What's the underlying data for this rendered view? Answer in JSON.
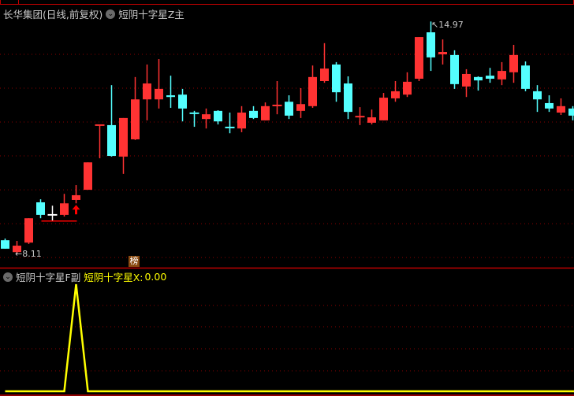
{
  "header": {
    "title": "长华集团(日线,前复权)",
    "indicator_icon": "chevron-down-icon",
    "indicator_main": "短阴十字星Z主"
  },
  "sub_header": {
    "indicator_icon": "chevron-down-icon",
    "indicator_sub": "短阴十字星F副",
    "series_label": "短阴十字星X:",
    "series_value": "0.00"
  },
  "annotations": {
    "high_label": "14.97",
    "low_label": "8.11",
    "badge": "榜"
  },
  "colors": {
    "up": "#ff3333",
    "down": "#54ffff",
    "flat": "#ffffff",
    "grid": "#8b0000",
    "divider": "#c00000",
    "indicator_line": "#ffff00",
    "signal": "#ff0000"
  },
  "chart_data": [
    {
      "type": "candlestick",
      "ylim": [
        7.7,
        15.0
      ],
      "gridlines": [
        8,
        9,
        10,
        11,
        12,
        13,
        14
      ],
      "grid": true,
      "candles": [
        [
          8.51,
          8.56,
          8.26,
          8.26
        ],
        [
          8.16,
          8.49,
          8.11,
          8.35
        ],
        [
          8.44,
          9.16,
          8.4,
          9.16
        ],
        [
          9.63,
          9.72,
          9.16,
          9.26
        ],
        [
          9.26,
          9.53,
          9.09,
          9.26
        ],
        [
          9.26,
          9.88,
          9.21,
          9.6
        ],
        [
          9.7,
          10.14,
          9.6,
          9.84
        ],
        [
          10.0,
          10.81,
          10.0,
          10.81
        ],
        [
          11.91,
          11.91,
          10.93,
          11.91
        ],
        [
          11.91,
          13.09,
          10.98,
          11.0
        ],
        [
          10.98,
          12.12,
          10.47,
          12.12
        ],
        [
          11.49,
          13.33,
          11.47,
          12.67
        ],
        [
          12.67,
          13.7,
          12.05,
          13.14
        ],
        [
          12.67,
          13.86,
          12.4,
          12.98
        ],
        [
          12.79,
          13.37,
          12.42,
          12.74
        ],
        [
          12.81,
          12.98,
          12.02,
          12.4
        ],
        [
          12.26,
          12.33,
          11.86,
          12.26
        ],
        [
          12.09,
          12.4,
          11.81,
          12.23
        ],
        [
          12.33,
          12.35,
          11.93,
          12.02
        ],
        [
          11.84,
          12.28,
          11.67,
          11.84
        ],
        [
          11.81,
          12.47,
          11.7,
          12.28
        ],
        [
          12.33,
          12.47,
          12.09,
          12.12
        ],
        [
          12.05,
          12.58,
          12.05,
          12.47
        ],
        [
          12.49,
          13.21,
          12.23,
          12.49
        ],
        [
          12.6,
          12.79,
          12.09,
          12.19
        ],
        [
          12.33,
          13.0,
          12.12,
          12.53
        ],
        [
          12.47,
          13.67,
          12.42,
          13.33
        ],
        [
          13.21,
          14.33,
          13.16,
          13.58
        ],
        [
          13.7,
          13.77,
          12.6,
          12.88
        ],
        [
          13.14,
          13.35,
          12.09,
          12.3
        ],
        [
          12.16,
          12.44,
          11.91,
          12.16
        ],
        [
          11.98,
          12.37,
          11.93,
          12.14
        ],
        [
          12.05,
          12.86,
          12.05,
          12.72
        ],
        [
          12.7,
          13.21,
          12.6,
          12.91
        ],
        [
          12.81,
          13.47,
          12.74,
          13.19
        ],
        [
          13.28,
          14.51,
          13.21,
          14.51
        ],
        [
          14.65,
          14.97,
          13.51,
          13.91
        ],
        [
          14.0,
          14.44,
          13.7,
          14.07
        ],
        [
          13.98,
          14.12,
          12.98,
          13.12
        ],
        [
          13.05,
          13.56,
          12.74,
          13.42
        ],
        [
          13.33,
          13.35,
          12.93,
          13.23
        ],
        [
          13.37,
          13.6,
          13.16,
          13.28
        ],
        [
          13.26,
          13.77,
          13.09,
          13.51
        ],
        [
          13.47,
          14.28,
          13.16,
          13.98
        ],
        [
          13.67,
          13.79,
          12.91,
          12.98
        ],
        [
          12.91,
          13.09,
          12.3,
          12.67
        ],
        [
          12.56,
          12.79,
          12.3,
          12.4
        ],
        [
          12.28,
          12.7,
          12.21,
          12.47
        ],
        [
          12.4,
          12.47,
          12.05,
          12.19
        ]
      ],
      "candle_colors": [
        "down",
        "up",
        "up",
        "down",
        "flat",
        "up",
        "up",
        "up",
        "up",
        "down",
        "up",
        "up",
        "up",
        "up",
        "down",
        "down",
        "down",
        "up",
        "down",
        "down",
        "up",
        "down",
        "up",
        "up",
        "down",
        "up",
        "up",
        "up",
        "down",
        "down",
        "up",
        "up",
        "up",
        "up",
        "up",
        "up",
        "down",
        "up",
        "down",
        "up",
        "down",
        "down",
        "up",
        "up",
        "down",
        "down",
        "down",
        "up",
        "down"
      ],
      "signal_arrow_index": 6,
      "signal_line": {
        "price": 9.09,
        "from_index": 3,
        "to_index": 6
      }
    },
    {
      "type": "line",
      "name": "短阴十字星X",
      "ylim": [
        0,
        1
      ],
      "values": [
        0,
        0,
        0,
        0,
        0,
        0,
        1,
        0,
        0,
        0,
        0,
        0,
        0,
        0,
        0,
        0,
        0,
        0,
        0,
        0,
        0,
        0,
        0,
        0,
        0,
        0,
        0,
        0,
        0,
        0,
        0,
        0,
        0,
        0,
        0,
        0,
        0,
        0,
        0,
        0,
        0,
        0,
        0,
        0,
        0,
        0,
        0,
        0,
        0
      ],
      "grid": true
    }
  ]
}
